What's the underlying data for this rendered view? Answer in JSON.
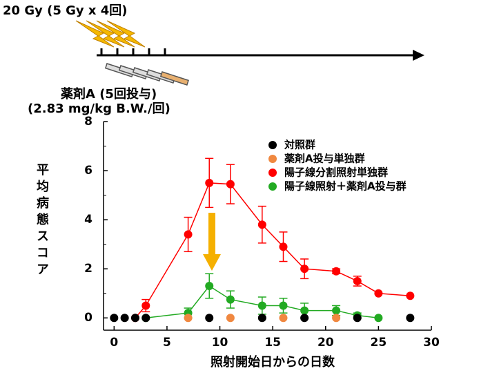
{
  "chart_data": {
    "type": "scatter",
    "schematic": {
      "dose": "20 Gy (5 Gy x 4回)",
      "drug": "薬剤A (5回投与)",
      "drug_dose": "(2.83 mg/kg B.W./回)"
    },
    "xlabel": "照射開始日からの日数",
    "ylabel": "平均病態スコア",
    "xlim": [
      -1,
      30
    ],
    "ylim": [
      -0.5,
      8
    ],
    "xticks": [
      0,
      5,
      10,
      15,
      20,
      25,
      30
    ],
    "yticks": [
      0,
      2,
      4,
      6,
      8
    ],
    "series": [
      {
        "name": "陽子線分割照射単独群",
        "color": "#ff0000",
        "line": true,
        "x": [
          2,
          3,
          7,
          9,
          11,
          14,
          16,
          18,
          21,
          23,
          25,
          28
        ],
        "values": [
          0,
          0.5,
          3.4,
          5.5,
          5.45,
          3.8,
          2.9,
          2.0,
          1.9,
          1.5,
          1.0,
          0.9
        ],
        "errors": [
          0,
          0.25,
          0.7,
          1.0,
          0.8,
          0.75,
          0.6,
          0.4,
          0.1,
          0.2,
          0,
          0
        ]
      },
      {
        "name": "陽子線照射＋薬剤A投与群",
        "color": "#22aa22",
        "line": true,
        "x": [
          3,
          7,
          9,
          11,
          14,
          16,
          18,
          21,
          23,
          25
        ],
        "values": [
          0,
          0.2,
          1.3,
          0.75,
          0.5,
          0.5,
          0.3,
          0.3,
          0.1,
          0
        ],
        "errors": [
          0,
          0.2,
          0.5,
          0.35,
          0.35,
          0.3,
          0.3,
          0.2,
          0.1,
          0
        ]
      },
      {
        "name": "薬剤A投与単独群",
        "color": "#f08840",
        "line": false,
        "x": [
          7,
          11,
          16,
          21
        ],
        "values": [
          0,
          0,
          0,
          0
        ]
      },
      {
        "name": "対照群",
        "color": "#000000",
        "line": false,
        "x": [
          0,
          1,
          2,
          3,
          9,
          14,
          18,
          23,
          28
        ],
        "values": [
          0,
          0,
          0,
          0,
          0,
          0,
          0,
          0,
          0
        ]
      }
    ],
    "legend_order": [
      3,
      2,
      0,
      1
    ]
  }
}
